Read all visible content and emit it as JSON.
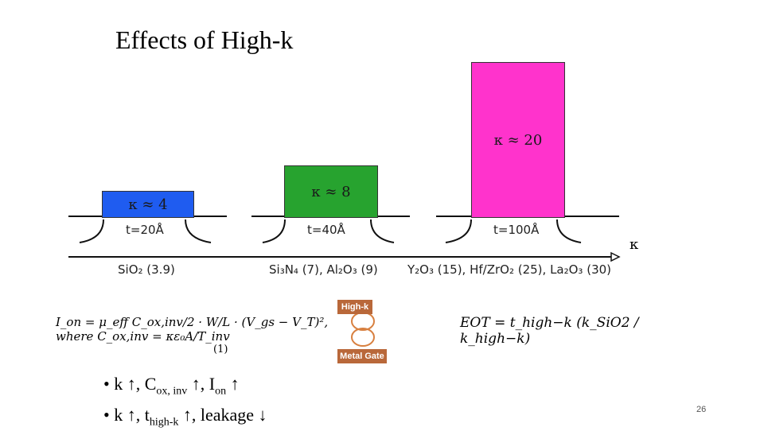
{
  "title": "Effects of High-k",
  "gates": [
    {
      "kappa_label": "κ ≈ 4",
      "thickness": "t=20Å",
      "materials": "SiO₂ (3.9)",
      "color": "#1f5cf0"
    },
    {
      "kappa_label": "κ ≈ 8",
      "thickness": "t=40Å",
      "materials": "Si₃N₄ (7), Al₂O₃ (9)",
      "color": "#27a32f"
    },
    {
      "kappa_label": "κ ≈ 20",
      "thickness": "t=100Å",
      "materials": "Y₂O₃ (15), Hf/ZrO₂ (25), La₂O₃ (30)",
      "color": "#ff33cc"
    }
  ],
  "axis_label": "κ",
  "equations": {
    "ion": "I_on = μ_eff C_ox,inv/2 · W/L · (V_gs − V_T)², where C_ox,inv = κε₀A/T_inv",
    "ion_number": "(1)",
    "eot": "EOT = t_high−k (k_SiO2 / k_high−k)"
  },
  "tags": {
    "high_k": "High-k",
    "metal_gate": "Metal Gate"
  },
  "bullets": [
    {
      "prefix": "k ↑, C",
      "sub": "ox, inv",
      "mid": " ↑, I",
      "sub2": "on",
      "suffix": " ↑"
    },
    {
      "prefix": "k ↑, t",
      "sub": "high-k",
      "mid": " ↑, leakage ↓",
      "sub2": "",
      "suffix": ""
    }
  ],
  "page_number": "26"
}
